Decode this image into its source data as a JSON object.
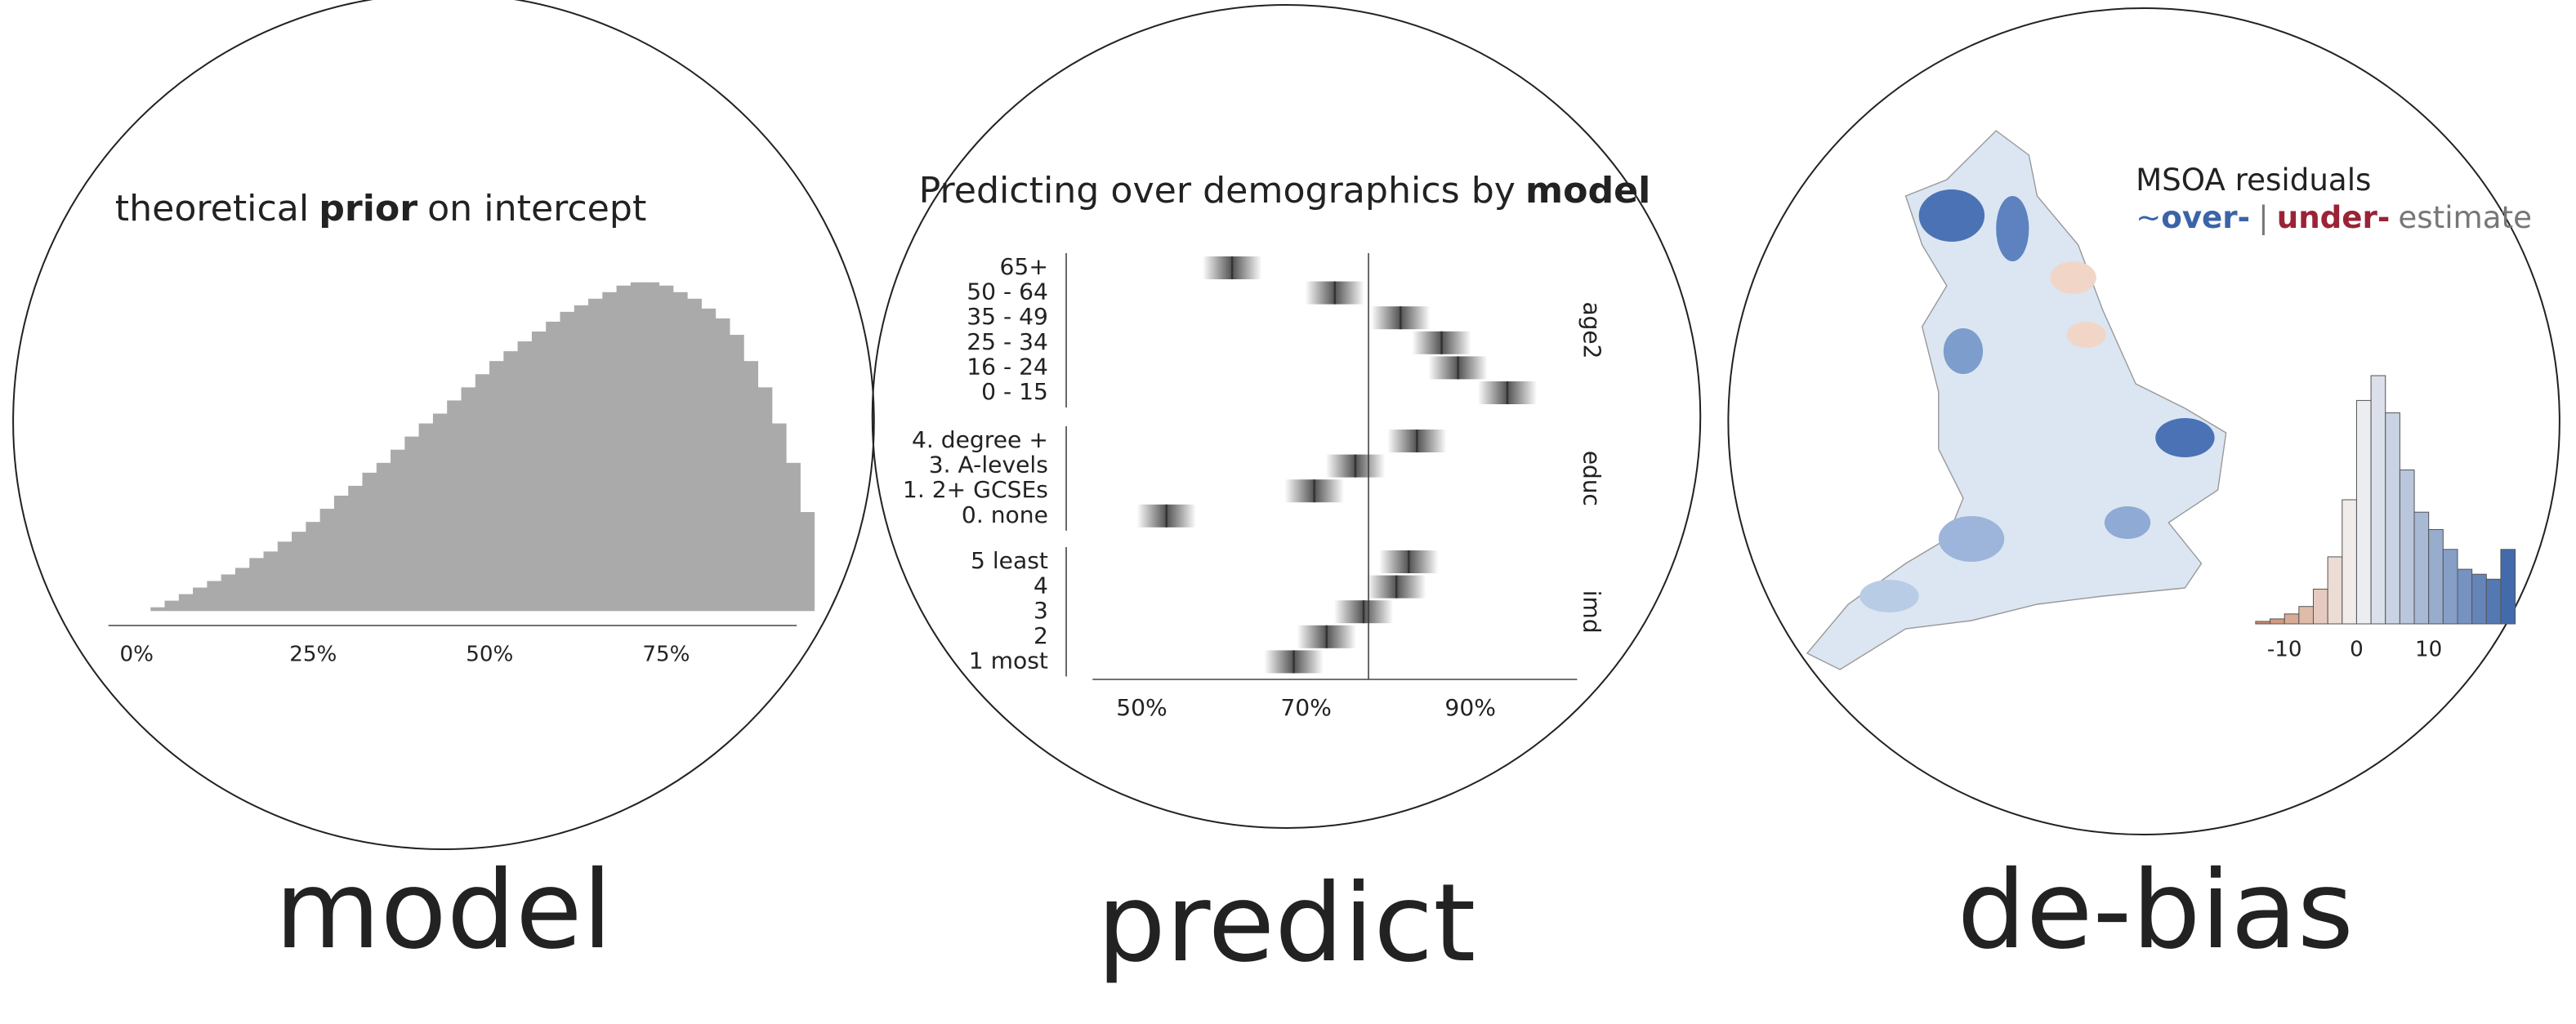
{
  "chart_data": [
    {
      "type": "histogram",
      "caption": "model",
      "title": [
        "theoretical",
        "prior",
        "on intercept"
      ],
      "color": "#aaaaaa",
      "bins": [
        2,
        4,
        6,
        8,
        10,
        12,
        14,
        16,
        18,
        20,
        22,
        24,
        26,
        28,
        30,
        32,
        34,
        36,
        38,
        40,
        42,
        44,
        46,
        48,
        50,
        52,
        54,
        56,
        58,
        60,
        62,
        64,
        66,
        68,
        70,
        72,
        74,
        76,
        78,
        80,
        82,
        84,
        86,
        88,
        90,
        92,
        94,
        96
      ],
      "values": [
        1,
        3,
        5,
        7,
        9,
        11,
        13,
        16,
        18,
        21,
        24,
        27,
        31,
        35,
        38,
        42,
        45,
        49,
        53,
        57,
        60,
        64,
        68,
        72,
        76,
        79,
        82,
        85,
        88,
        91,
        93,
        95,
        97,
        99,
        100,
        100,
        99,
        97,
        95,
        92,
        89,
        84,
        76,
        68,
        57,
        45,
        30
      ],
      "xlim": [
        -4,
        93.5
      ],
      "ylim": [
        0,
        100
      ],
      "xticks": [
        {
          "value": 0,
          "label": "0%"
        },
        {
          "value": 25,
          "label": "25%"
        },
        {
          "value": 50,
          "label": "50%"
        },
        {
          "value": 75,
          "label": "75%"
        }
      ]
    },
    {
      "type": "interval",
      "caption": "predict",
      "title": [
        "Predicting over demographics by",
        "model"
      ],
      "color": "#333333",
      "facets": [
        {
          "name": "age2",
          "categories": [
            "65+",
            "50 - 64",
            "35 - 49",
            "25 - 34",
            "16 - 24",
            "0 - 15"
          ],
          "values": [
            61,
            73.5,
            81.5,
            86.5,
            88.5,
            94.5
          ]
        },
        {
          "name": "educ",
          "categories": [
            "4. degree +",
            "3. A-levels",
            "1. 2+ GCSEs",
            "0. none"
          ],
          "values": [
            83.5,
            76,
            71,
            53
          ]
        },
        {
          "name": "imd",
          "categories": [
            "5 least",
            "4",
            "3",
            "2",
            "1 most"
          ],
          "values": [
            82.5,
            81,
            77,
            72.5,
            68.5
          ]
        }
      ],
      "reference_line": 77.6,
      "xlim": [
        44,
        103
      ],
      "xticks": [
        {
          "value": 50,
          "label": "50%"
        },
        {
          "value": 70,
          "label": "70%"
        },
        {
          "value": 90,
          "label": "90%"
        }
      ]
    },
    {
      "type": "histogram",
      "caption": "de-bias",
      "title": [
        "MSOA residuals"
      ],
      "subtitle": [
        "~",
        "over-",
        "|",
        "under-",
        "estimate"
      ],
      "cmap": [
        "#c9825f",
        "#f4f4f4",
        "#3b64a8"
      ],
      "bins": [
        -14,
        -12,
        -10,
        -8,
        -6,
        -4,
        -2,
        0,
        2,
        4,
        6,
        8,
        10,
        12,
        14,
        16,
        18,
        20,
        22
      ],
      "values": [
        1,
        2,
        4,
        7,
        14,
        27,
        50,
        90,
        100,
        85,
        62,
        45,
        38,
        30,
        22,
        20,
        18,
        30
      ],
      "xlim": [
        -14,
        22
      ],
      "ylim": [
        0,
        100
      ],
      "xticks": [
        -10,
        0,
        10
      ]
    }
  ]
}
